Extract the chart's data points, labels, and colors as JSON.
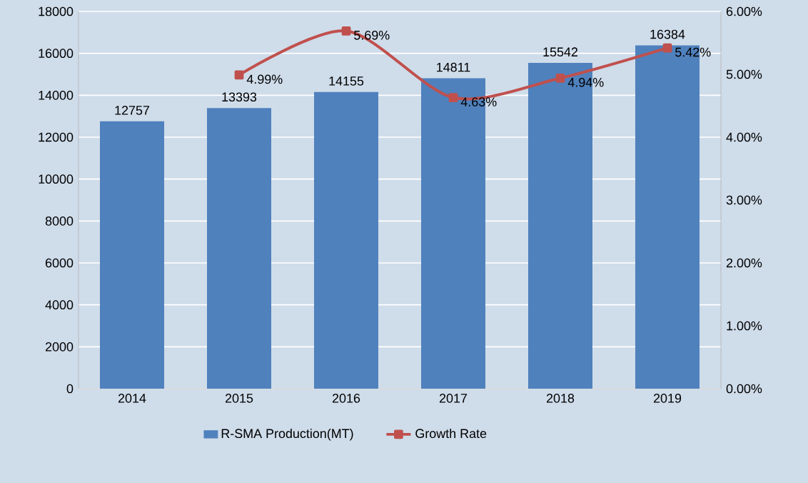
{
  "chart_data": {
    "type": "bar",
    "categories": [
      "2014",
      "2015",
      "2016",
      "2017",
      "2018",
      "2019"
    ],
    "series": [
      {
        "name": "R-SMA Production(MT)",
        "color": "#4f81bd",
        "values": [
          12757,
          13393,
          14155,
          14811,
          15542,
          16384
        ],
        "value_labels": [
          "12757",
          "13393",
          "14155",
          "14811",
          "15542",
          "16384"
        ]
      },
      {
        "name": "Growth Rate",
        "type": "line",
        "axis": "y2",
        "color": "#c0504d",
        "marker": "square",
        "values": [
          null,
          4.99,
          5.69,
          4.63,
          4.94,
          5.42
        ],
        "value_labels": [
          null,
          "4.99%",
          "5.69%",
          "4.63%",
          "4.94%",
          "5.42%"
        ]
      }
    ],
    "ylim": [
      0,
      18000
    ],
    "yticks": [
      0,
      2000,
      4000,
      6000,
      8000,
      10000,
      12000,
      14000,
      16000,
      18000
    ],
    "y2lim": [
      0,
      6
    ],
    "y2ticks": [
      {
        "value": 0,
        "label": "0.00%"
      },
      {
        "value": 1,
        "label": "1.00%"
      },
      {
        "value": 2,
        "label": "2.00%"
      },
      {
        "value": 3,
        "label": "3.00%"
      },
      {
        "value": 4,
        "label": "4.00%"
      },
      {
        "value": 5,
        "label": "5.00%"
      },
      {
        "value": 6,
        "label": "6.00%"
      }
    ],
    "grid": "y",
    "legend": "bottom"
  }
}
